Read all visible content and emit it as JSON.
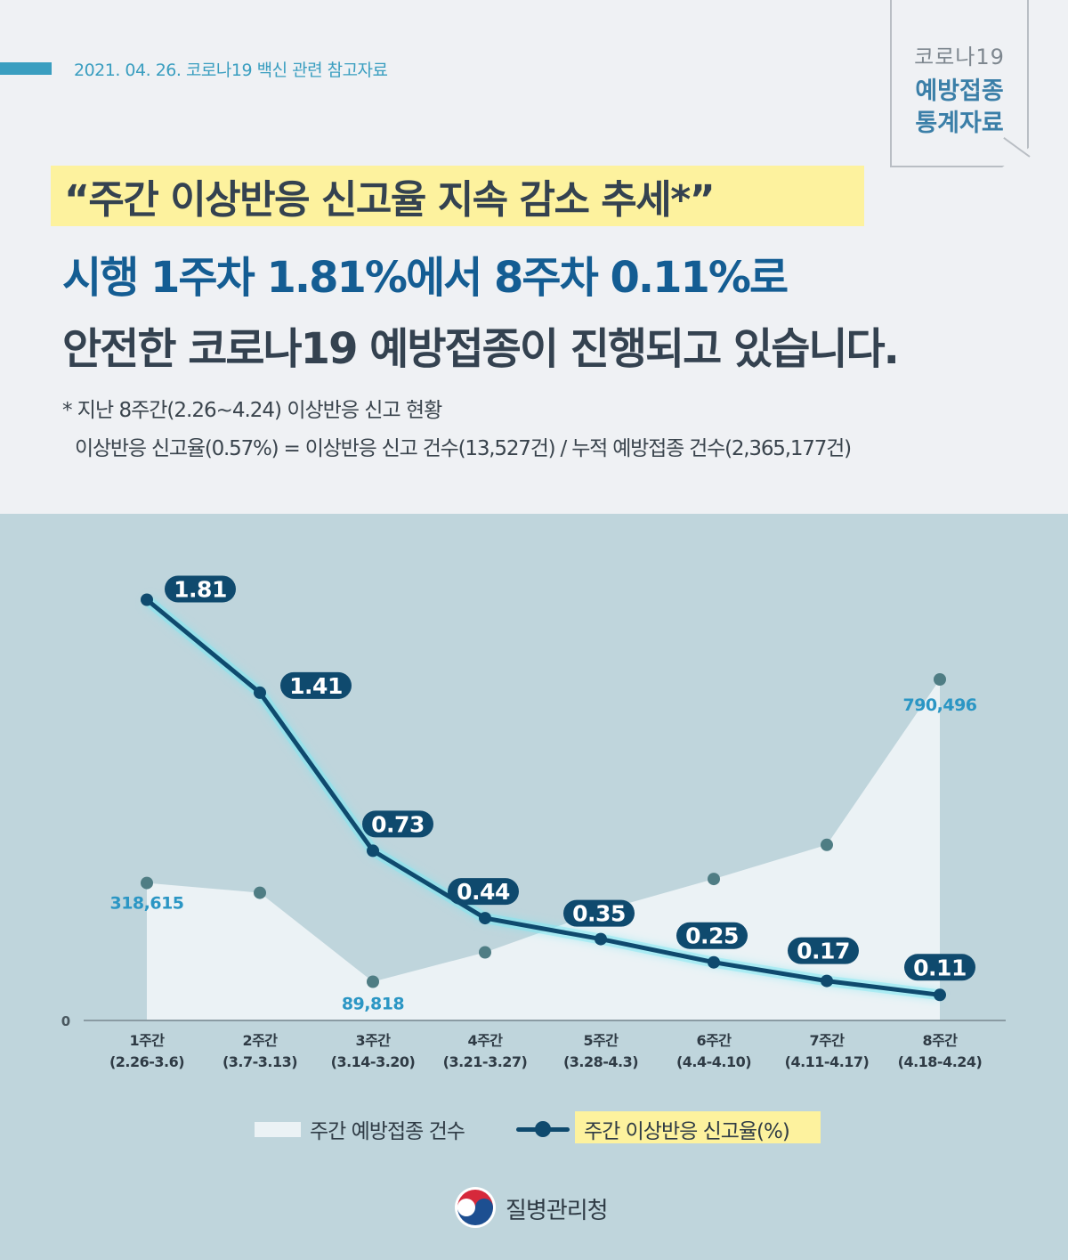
{
  "header": {
    "dateline": "2021. 04. 26. 코로나19 백신 관련 참고자료",
    "tag_line1": "코로나19",
    "tag_line2": "예방접종",
    "tag_line3": "통계자료"
  },
  "headline": {
    "line1": "“주간 이상반응 신고율 지속 감소 추세*”",
    "line2": "시행 1주차 1.81%에서 8주차 0.11%로",
    "line3": "안전한 코로나19 예방접종이 진행되고 있습니다."
  },
  "notes": {
    "line1": "* 지난 8주간(2.26~4.24)  이상반응  신고 현황",
    "line2": "이상반응 신고율(0.57%) = 이상반응 신고 건수(13,527건) / 누적 예방접종 건수(2,365,177건)"
  },
  "colors": {
    "rate_line": "#0f4a6e",
    "area_fill": "#ebf2f5",
    "area_point": "#4f7d84",
    "area_label": "#2b96c4",
    "highlight": "#fdf29e",
    "accent": "#3a9ec0"
  },
  "chart_data": {
    "type": "line",
    "categories": [
      "1주간",
      "2주간",
      "3주간",
      "4주간",
      "5주간",
      "6주간",
      "7주간",
      "8주간"
    ],
    "category_ranges": [
      "(2.26-3.6)",
      "(3.7-3.13)",
      "(3.14-3.20)",
      "(3.21-3.27)",
      "(3.28-4.3)",
      "(4.4-4.10)",
      "(4.11-4.17)",
      "(4.18-4.24)"
    ],
    "y_zero_label": "0",
    "series": [
      {
        "name": "주간 예방접종 건수",
        "type": "area",
        "values": [
          318615,
          296000,
          89818,
          158000,
          254000,
          328000,
          407000,
          790496
        ],
        "labels": [
          "318,615",
          "",
          "89,818",
          "",
          "",
          "",
          "",
          "790,496"
        ],
        "ylim": [
          0,
          900000
        ]
      },
      {
        "name": "주간 이상반응 신고율(%)",
        "type": "line",
        "values": [
          1.81,
          1.41,
          0.73,
          0.44,
          0.35,
          0.25,
          0.17,
          0.11
        ],
        "labels": [
          "1.81",
          "1.41",
          "0.73",
          "0.44",
          "0.35",
          "0.25",
          "0.17",
          "0.11"
        ],
        "ylim": [
          0,
          1.9
        ]
      }
    ],
    "grid": false,
    "legend": "bottom-center"
  },
  "footer": {
    "org": "질병관리청"
  }
}
